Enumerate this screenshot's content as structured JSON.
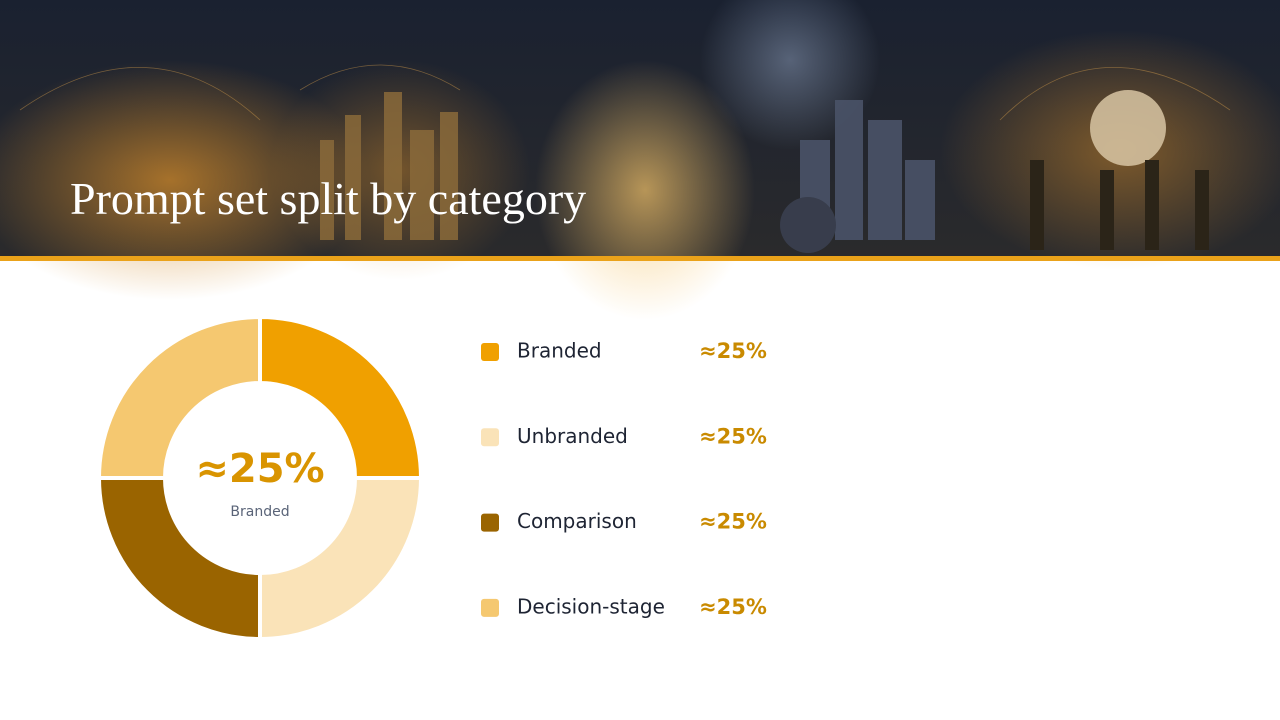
{
  "chart_data": {
    "type": "pie",
    "title": "Prompt set split by category",
    "categories": [
      "Branded",
      "Unbranded",
      "Comparison",
      "Decision-stage"
    ],
    "values": [
      25,
      25,
      25,
      25
    ],
    "value_labels": [
      "≈25%",
      "≈25%",
      "≈25%",
      "≈25%"
    ],
    "colors": [
      "#f0a000",
      "#fae3b8",
      "#9a6400",
      "#f5c870"
    ],
    "donut": true
  }
}
